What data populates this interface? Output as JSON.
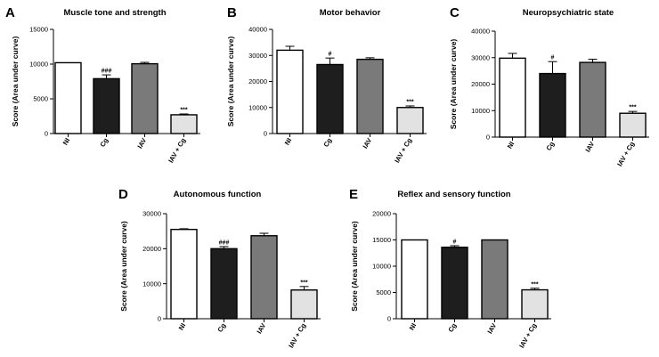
{
  "chart_data": [
    {
      "panel": "A",
      "type": "bar",
      "title": "Muscle tone and strength",
      "ylabel": "Score (Area under curve)",
      "categories": [
        "NI",
        "Cg",
        "IAV",
        "IAV + Cg"
      ],
      "values": [
        10200,
        7900,
        10050,
        2700
      ],
      "errors": [
        0,
        550,
        200,
        120
      ],
      "annotations": [
        "",
        "###",
        "",
        "***"
      ],
      "colors": [
        "#ffffff",
        "#1e1e1e",
        "#7a7a7a",
        "#e2e2e2"
      ],
      "ylim": [
        0,
        15000
      ],
      "yticks": [
        0,
        5000,
        10000,
        15000
      ]
    },
    {
      "panel": "B",
      "type": "bar",
      "title": "Motor behavior",
      "ylabel": "Score (Area under curve)",
      "categories": [
        "NI",
        "Cg",
        "IAV",
        "IAV + Cg"
      ],
      "values": [
        32000,
        26500,
        28500,
        10000
      ],
      "errors": [
        1500,
        2500,
        600,
        600
      ],
      "annotations": [
        "",
        "#",
        "",
        "***"
      ],
      "colors": [
        "#ffffff",
        "#1e1e1e",
        "#7a7a7a",
        "#e2e2e2"
      ],
      "ylim": [
        0,
        40000
      ],
      "yticks": [
        0,
        10000,
        20000,
        30000,
        40000
      ]
    },
    {
      "panel": "C",
      "type": "bar",
      "title": "Neuropsychiatric state",
      "ylabel": "Score (Area under curve)",
      "categories": [
        "NI",
        "Cg",
        "IAV",
        "IAV + Cg"
      ],
      "values": [
        29800,
        24000,
        28200,
        9000
      ],
      "errors": [
        1800,
        4500,
        1200,
        700
      ],
      "annotations": [
        "",
        "#",
        "",
        "***"
      ],
      "colors": [
        "#ffffff",
        "#1e1e1e",
        "#7a7a7a",
        "#e2e2e2"
      ],
      "ylim": [
        0,
        40000
      ],
      "yticks": [
        0,
        10000,
        20000,
        30000,
        40000
      ]
    },
    {
      "panel": "D",
      "type": "bar",
      "title": "Autonomous function",
      "ylabel": "Score (Area under curve)",
      "categories": [
        "NI",
        "Cg",
        "IAV",
        "IAV + Cg"
      ],
      "values": [
        25500,
        20000,
        23700,
        8200
      ],
      "errors": [
        200,
        600,
        700,
        1000
      ],
      "annotations": [
        "",
        "###",
        "",
        "***"
      ],
      "colors": [
        "#ffffff",
        "#1e1e1e",
        "#7a7a7a",
        "#e2e2e2"
      ],
      "ylim": [
        0,
        30000
      ],
      "yticks": [
        0,
        10000,
        20000,
        30000
      ]
    },
    {
      "panel": "E",
      "type": "bar",
      "title": "Reflex and sensory function",
      "ylabel": "Score (Area under curve)",
      "categories": [
        "NI",
        "Cg",
        "IAV",
        "IAV + Cg"
      ],
      "values": [
        15000,
        13600,
        15000,
        5500
      ],
      "errors": [
        0,
        300,
        0,
        300
      ],
      "annotations": [
        "",
        "#",
        "",
        "***"
      ],
      "colors": [
        "#ffffff",
        "#1e1e1e",
        "#7a7a7a",
        "#e2e2e2"
      ],
      "ylim": [
        0,
        20000
      ],
      "yticks": [
        0,
        5000,
        10000,
        15000,
        20000
      ]
    }
  ]
}
